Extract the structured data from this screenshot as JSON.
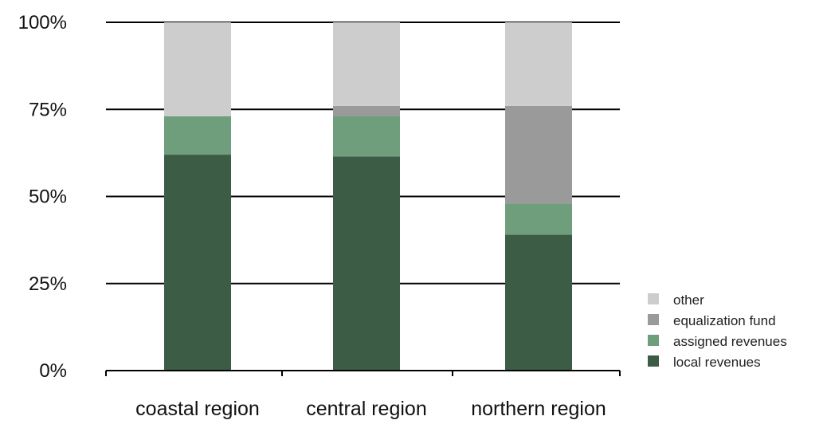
{
  "chart_data": {
    "type": "bar",
    "stacked": true,
    "percent": true,
    "title": "",
    "xlabel": "",
    "ylabel": "",
    "ylim": [
      0,
      100
    ],
    "y_ticks": [
      "0%",
      "25%",
      "50%",
      "75%",
      "100%"
    ],
    "y_tick_values": [
      0,
      25,
      50,
      75,
      100
    ],
    "grid": true,
    "legend_position": "bottom-right",
    "categories": [
      "coastal region",
      "central region",
      "northern region"
    ],
    "series": [
      {
        "name": "local revenues",
        "color": "#3d5c46",
        "values": [
          62,
          61.5,
          39
        ]
      },
      {
        "name": "assigned revenues",
        "color": "#6f9e7c",
        "values": [
          11,
          11.5,
          9
        ]
      },
      {
        "name": "equalization fund",
        "color": "#9a9a9a",
        "values": [
          0,
          3,
          28
        ]
      },
      {
        "name": "other",
        "color": "#cdcdcd",
        "values": [
          27,
          24,
          24
        ]
      }
    ]
  }
}
